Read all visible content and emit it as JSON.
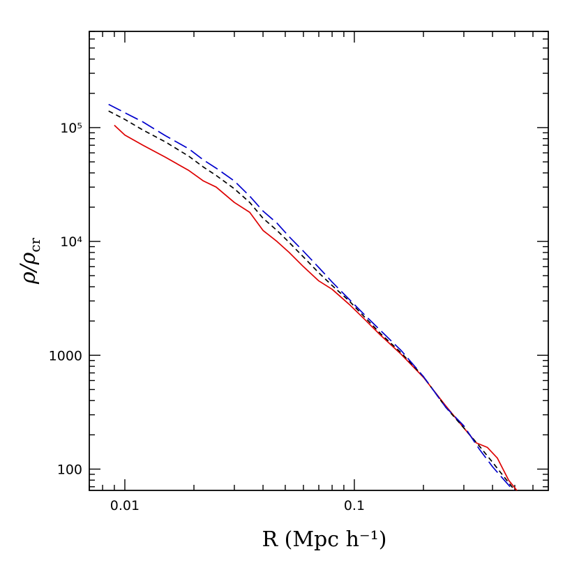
{
  "chart_data": {
    "type": "line",
    "title": "",
    "xlabel": "R (Mpc h⁻¹)",
    "ylabel": "ρ/ρ_cr",
    "x_scale": "log",
    "y_scale": "log",
    "xlim": [
      0.007,
      0.7
    ],
    "ylim": [
      65,
      700000
    ],
    "x_ticks": [
      {
        "value": 0.01,
        "label": "0.01"
      },
      {
        "value": 0.1,
        "label": "0.1"
      }
    ],
    "y_ticks": [
      {
        "value": 100,
        "label": "100"
      },
      {
        "value": 1000,
        "label": "1000"
      },
      {
        "value": 10000,
        "label": "10⁴"
      },
      {
        "value": 100000,
        "label": "10⁵"
      }
    ],
    "grid": false,
    "legend": null,
    "series": [
      {
        "color": "#dd0000",
        "style": "solid",
        "points": [
          [
            0.009,
            105000
          ],
          [
            0.01,
            86000
          ],
          [
            0.012,
            70000
          ],
          [
            0.015,
            55000
          ],
          [
            0.019,
            42000
          ],
          [
            0.022,
            34000
          ],
          [
            0.025,
            30000
          ],
          [
            0.03,
            22000
          ],
          [
            0.035,
            18000
          ],
          [
            0.04,
            12500
          ],
          [
            0.046,
            10000
          ],
          [
            0.052,
            8000
          ],
          [
            0.06,
            6000
          ],
          [
            0.07,
            4500
          ],
          [
            0.08,
            3800
          ],
          [
            0.095,
            2800
          ],
          [
            0.11,
            2100
          ],
          [
            0.13,
            1500
          ],
          [
            0.16,
            1020
          ],
          [
            0.2,
            640
          ],
          [
            0.25,
            360
          ],
          [
            0.3,
            230
          ],
          [
            0.34,
            170
          ],
          [
            0.38,
            155
          ],
          [
            0.42,
            125
          ],
          [
            0.47,
            80
          ],
          [
            0.52,
            62
          ]
        ]
      },
      {
        "color": "#000000",
        "style": "short-dash",
        "points": [
          [
            0.0085,
            140000
          ],
          [
            0.01,
            118000
          ],
          [
            0.012,
            95000
          ],
          [
            0.015,
            75000
          ],
          [
            0.019,
            56000
          ],
          [
            0.022,
            45000
          ],
          [
            0.025,
            38000
          ],
          [
            0.03,
            29000
          ],
          [
            0.035,
            22000
          ],
          [
            0.04,
            16000
          ],
          [
            0.046,
            12500
          ],
          [
            0.052,
            9800
          ],
          [
            0.06,
            7300
          ],
          [
            0.07,
            5300
          ],
          [
            0.08,
            4100
          ],
          [
            0.095,
            3000
          ],
          [
            0.11,
            2200
          ],
          [
            0.13,
            1550
          ],
          [
            0.16,
            1050
          ],
          [
            0.2,
            650
          ],
          [
            0.25,
            350
          ],
          [
            0.3,
            230
          ],
          [
            0.35,
            160
          ],
          [
            0.4,
            115
          ],
          [
            0.45,
            85
          ],
          [
            0.5,
            65
          ]
        ]
      },
      {
        "color": "#0000cc",
        "style": "long-dash",
        "points": [
          [
            0.0085,
            160000
          ],
          [
            0.01,
            135000
          ],
          [
            0.012,
            112000
          ],
          [
            0.015,
            85000
          ],
          [
            0.019,
            65000
          ],
          [
            0.022,
            52000
          ],
          [
            0.025,
            44000
          ],
          [
            0.03,
            34000
          ],
          [
            0.035,
            25000
          ],
          [
            0.04,
            18500
          ],
          [
            0.046,
            14500
          ],
          [
            0.052,
            11000
          ],
          [
            0.06,
            8200
          ],
          [
            0.07,
            5900
          ],
          [
            0.08,
            4400
          ],
          [
            0.095,
            3100
          ],
          [
            0.11,
            2300
          ],
          [
            0.13,
            1650
          ],
          [
            0.16,
            1100
          ],
          [
            0.2,
            650
          ],
          [
            0.25,
            350
          ],
          [
            0.3,
            240
          ],
          [
            0.35,
            150
          ],
          [
            0.4,
            105
          ],
          [
            0.45,
            80
          ],
          [
            0.5,
            63
          ]
        ]
      }
    ]
  }
}
